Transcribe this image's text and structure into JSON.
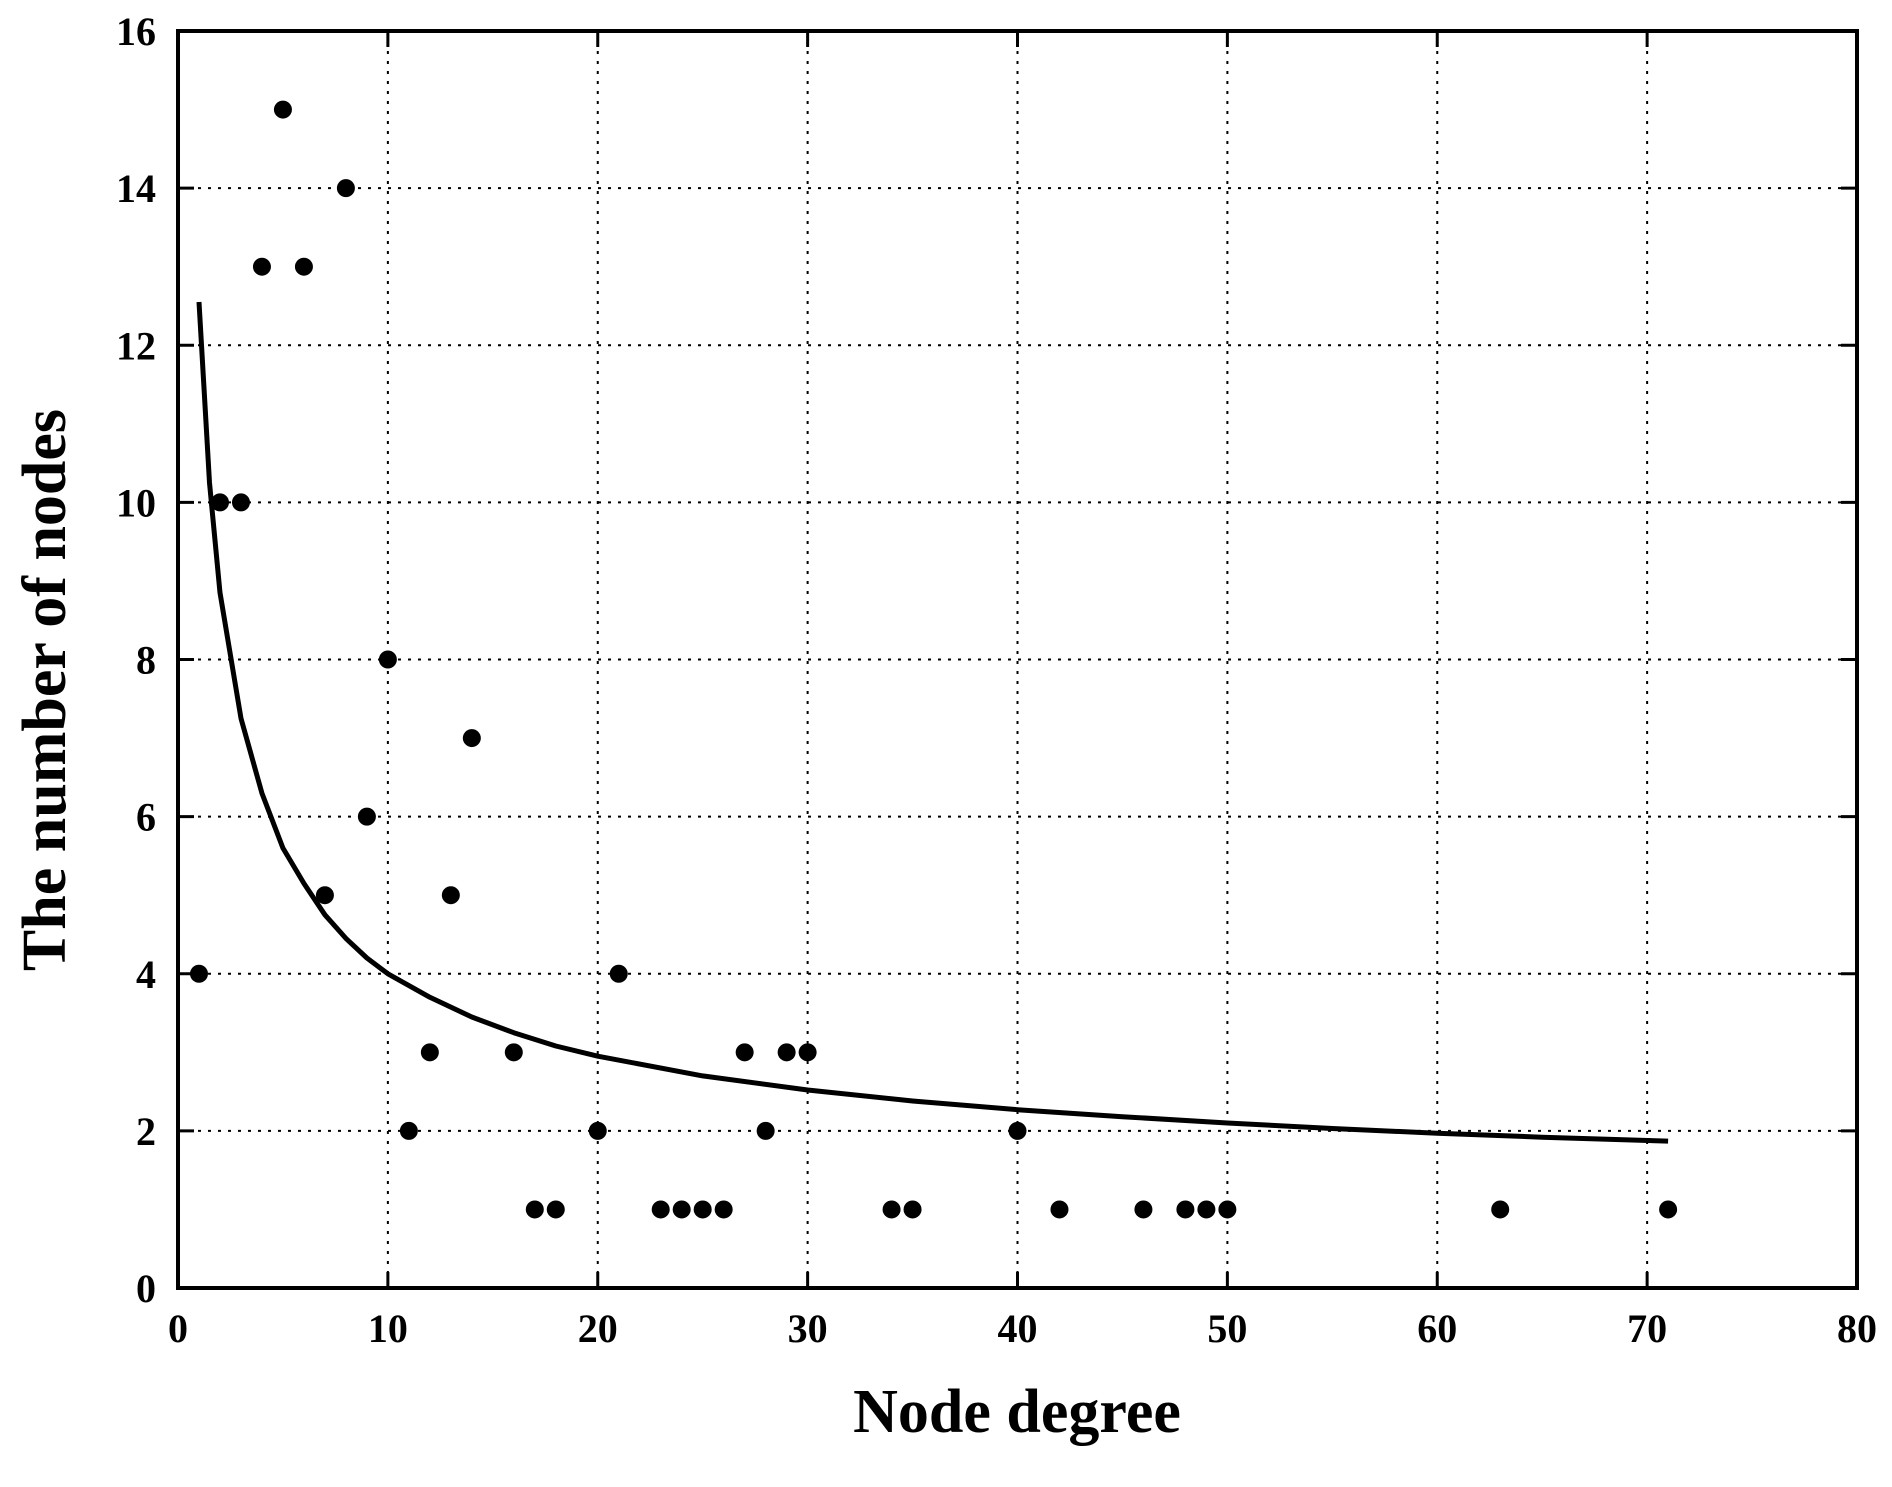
{
  "chart_data": {
    "type": "scatter",
    "xlabel": "Node degree",
    "ylabel": "The number of nodes",
    "xlim": [
      0,
      80
    ],
    "ylim": [
      0,
      16
    ],
    "x_ticks": [
      0,
      10,
      20,
      30,
      40,
      50,
      60,
      70,
      80
    ],
    "y_ticks": [
      0,
      2,
      4,
      6,
      8,
      10,
      12,
      14,
      16
    ],
    "x_tick_labels": [
      "0",
      "10",
      "20",
      "30",
      "40",
      "50",
      "60",
      "70",
      "80"
    ],
    "y_tick_labels": [
      "0",
      "2",
      "4",
      "6",
      "8",
      "10",
      "12",
      "14",
      "16"
    ],
    "grid": true,
    "grid_style": "dotted",
    "legend": null,
    "series": [
      {
        "kind": "points",
        "marker": "filled-circle",
        "color": "#000000",
        "x": [
          1,
          2,
          3,
          4,
          5,
          6,
          7,
          8,
          9,
          10,
          11,
          12,
          13,
          14,
          16,
          17,
          18,
          20,
          21,
          23,
          24,
          25,
          26,
          27,
          28,
          29,
          30,
          34,
          35,
          40,
          42,
          46,
          48,
          49,
          50,
          63,
          71
        ],
        "y": [
          4,
          10,
          10,
          13,
          15,
          13,
          5,
          14,
          6,
          8,
          2,
          3,
          5,
          7,
          3,
          1,
          1,
          2,
          4,
          1,
          1,
          1,
          1,
          3,
          2,
          3,
          3,
          1,
          1,
          2,
          1,
          1,
          1,
          1,
          1,
          1,
          1
        ]
      },
      {
        "kind": "fit-curve",
        "style": "solid-line",
        "color": "#000000",
        "x": [
          1,
          1.5,
          2,
          3,
          4,
          5,
          6,
          7,
          8,
          9,
          10,
          12,
          14,
          16,
          18,
          20,
          25,
          30,
          35,
          40,
          45,
          50,
          55,
          60,
          65,
          71
        ],
        "y": [
          12.55,
          10.25,
          8.85,
          7.25,
          6.3,
          5.6,
          5.15,
          4.75,
          4.45,
          4.2,
          4.0,
          3.7,
          3.45,
          3.25,
          3.08,
          2.95,
          2.7,
          2.52,
          2.38,
          2.27,
          2.18,
          2.1,
          2.03,
          1.97,
          1.92,
          1.87
        ]
      }
    ]
  }
}
